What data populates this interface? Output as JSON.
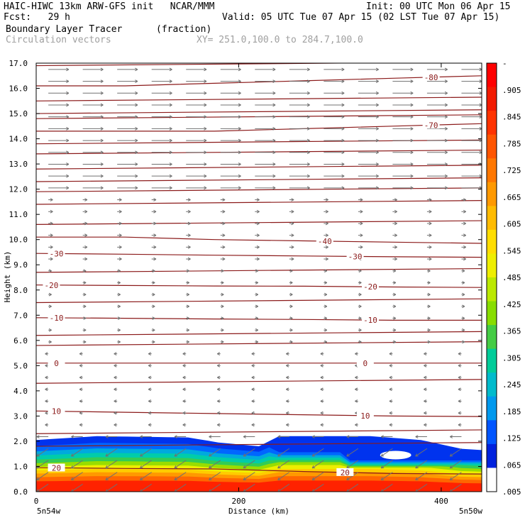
{
  "header": {
    "line1_left": "HAIC-HIWC 13km ARW-GFS init   NCAR/MMM",
    "line1_right": "Init: 00 UTC Mon 06 Apr 15",
    "line2_left": "Fcst:   29 h",
    "line2_right": "Valid: 05 UTC Tue 07 Apr 15 (02 LST Tue 07 Apr 15)",
    "line3_left": "Boundary Layer Tracer",
    "line3_units": "(fraction)",
    "line4_left": "Circulation vectors",
    "line4_right": "XY= 251.0,100.0 to 284.7,100.0"
  },
  "chart_data": {
    "type": "contour-cross-section",
    "xlabel": "Distance (km)",
    "ylabel": "Height (km)",
    "xlim": [
      0,
      440
    ],
    "ylim": [
      0,
      17
    ],
    "x_ticks": [
      "0",
      "200",
      "400"
    ],
    "x_tick_values": [
      0,
      200,
      400
    ],
    "y_ticks": [
      "0.0",
      "1.0",
      "2.0",
      "3.0",
      "4.0",
      "5.0",
      "6.0",
      "7.0",
      "8.0",
      "9.0",
      "10.0",
      "11.0",
      "12.0",
      "13.0",
      "14.0",
      "15.0",
      "16.0",
      "17.0"
    ],
    "endpoint_left": "5n54w",
    "endpoint_right": "5n50w",
    "colorbar": {
      "labels": [
        "-",
        ".905",
        ".845",
        ".785",
        ".725",
        ".665",
        ".605",
        ".545",
        ".485",
        ".425",
        ".365",
        ".305",
        ".245",
        ".185",
        ".125",
        ".065",
        ".005"
      ],
      "colors": [
        "#ff0000",
        "#f21a00",
        "#ff3300",
        "#ff5500",
        "#ff7700",
        "#ff9900",
        "#ffbb00",
        "#ffdd00",
        "#eeee00",
        "#bbe800",
        "#88dd00",
        "#44cc44",
        "#00cc99",
        "#00bbcc",
        "#0099ee",
        "#0055ff",
        "#0022dd",
        "#ffffff"
      ]
    },
    "isotherms": [
      {
        "label": "-80",
        "label_x": 390,
        "heights": [
          16.1,
          16.1,
          16.2,
          16.3,
          16.4,
          16.5
        ]
      },
      {
        "label": "-70",
        "label_x": 390,
        "heights": [
          14.3,
          14.3,
          14.3,
          14.4,
          14.5,
          14.6
        ]
      },
      {
        "label": "-40",
        "label_x": 285,
        "heights": [
          10.1,
          10.1,
          10.0,
          9.95,
          9.9,
          9.85
        ]
      },
      {
        "label": "-30",
        "label_x": 20,
        "heights": [
          9.45,
          9.42,
          9.38,
          9.35,
          9.32,
          9.3
        ]
      },
      {
        "label": "-30",
        "label_x": 315,
        "heights": []
      },
      {
        "label": "-20",
        "label_x": 15,
        "heights": [
          8.2,
          8.18,
          8.16,
          8.15,
          8.12,
          8.1
        ]
      },
      {
        "label": "-20",
        "label_x": 330,
        "heights": []
      },
      {
        "label": "-10",
        "label_x": 20,
        "heights": [
          6.9,
          6.88,
          6.85,
          6.83,
          6.8,
          6.8
        ]
      },
      {
        "label": "-10",
        "label_x": 330,
        "heights": []
      },
      {
        "label": "0",
        "label_x": 20,
        "heights": [
          5.1,
          5.1,
          5.1,
          5.1,
          5.1,
          5.1
        ]
      },
      {
        "label": "0",
        "label_x": 325,
        "heights": []
      },
      {
        "label": "10",
        "label_x": 20,
        "heights": [
          3.2,
          3.15,
          3.1,
          3.05,
          3.0,
          2.98
        ]
      },
      {
        "label": "10",
        "label_x": 325,
        "heights": []
      },
      {
        "label": "20",
        "label_x": 20,
        "heights": [
          0.95,
          0.92,
          0.9,
          0.8,
          0.72,
          0.7
        ]
      },
      {
        "label": "20",
        "label_x": 305,
        "heights": []
      }
    ],
    "extra_isotherms_km": [
      16.9,
      15.5,
      15.0,
      14.8,
      13.8,
      13.4,
      12.8,
      12.3,
      11.9,
      11.4,
      10.6,
      8.7,
      7.5,
      6.2,
      5.8,
      4.3,
      2.3,
      1.8
    ],
    "tracer_top_km": [
      [
        0,
        2.05
      ],
      [
        60,
        2.2
      ],
      [
        150,
        2.15
      ],
      [
        180,
        1.95
      ],
      [
        220,
        1.8
      ],
      [
        240,
        2.2
      ],
      [
        330,
        2.2
      ],
      [
        380,
        2.05
      ],
      [
        420,
        1.7
      ],
      [
        440,
        1.65
      ]
    ],
    "grid": false
  }
}
